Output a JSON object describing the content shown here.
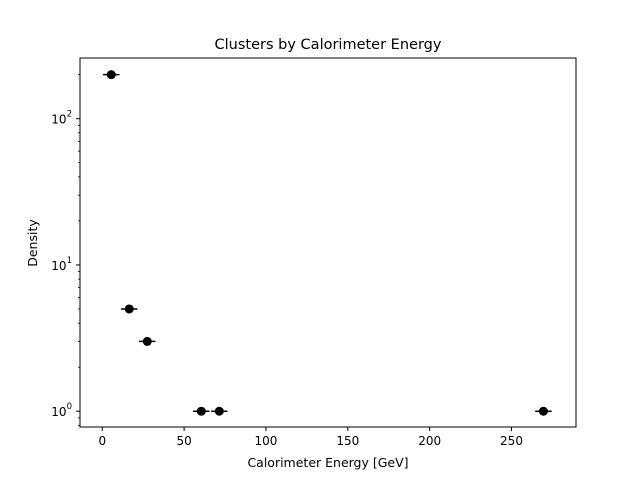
{
  "chart_data": {
    "type": "scatter",
    "title": "Clusters by Calorimeter Energy",
    "xlabel": "Calorimeter Energy [GeV]",
    "ylabel": "Density",
    "xlim": [
      -13.6,
      289.4
    ],
    "ylim": [
      0.78,
      260
    ],
    "yscale": "log",
    "grid": false,
    "marker_color": "#000000",
    "x_ticks": [
      {
        "value": 0,
        "label": "0"
      },
      {
        "value": 50,
        "label": "50"
      },
      {
        "value": 100,
        "label": "100"
      },
      {
        "value": 150,
        "label": "150"
      },
      {
        "value": 200,
        "label": "200"
      },
      {
        "value": 250,
        "label": "250"
      }
    ],
    "y_ticks": [
      {
        "value": 1,
        "base": "10",
        "exp": "0"
      },
      {
        "value": 10,
        "base": "10",
        "exp": "1"
      },
      {
        "value": 100,
        "base": "10",
        "exp": "2"
      }
    ],
    "series": [
      {
        "points": [
          {
            "x": 5.5,
            "y": 200,
            "xerr": 5
          },
          {
            "x": 16.5,
            "y": 5,
            "xerr": 5
          },
          {
            "x": 27.5,
            "y": 3,
            "xerr": 5
          },
          {
            "x": 60.5,
            "y": 1,
            "xerr": 5
          },
          {
            "x": 71.5,
            "y": 1,
            "xerr": 5
          },
          {
            "x": 269.5,
            "y": 1,
            "xerr": 5
          }
        ]
      }
    ]
  }
}
